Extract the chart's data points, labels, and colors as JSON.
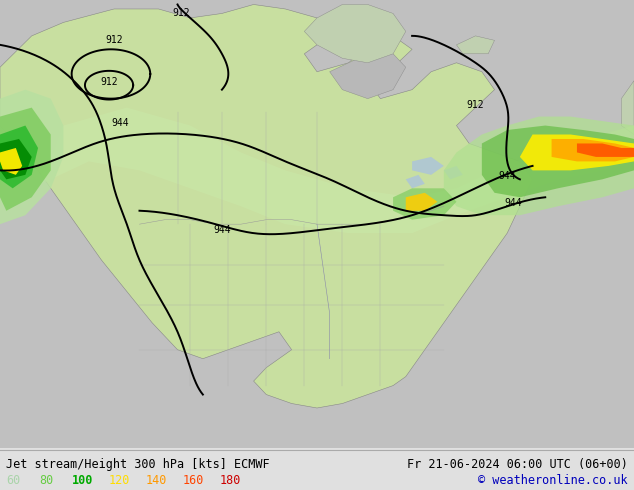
{
  "title_left": "Jet stream/Height 300 hPa [kts] ECMWF",
  "title_right": "Fr 21-06-2024 06:00 UTC (06+00)",
  "copyright": "© weatheronline.co.uk",
  "legend_values": [
    "60",
    "80",
    "100",
    "120",
    "140",
    "160",
    "180"
  ],
  "legend_colors": [
    "#aad4aa",
    "#66cc44",
    "#00aa00",
    "#ffdd00",
    "#ff9900",
    "#ff4400",
    "#cc0000"
  ],
  "legend_bold": [
    false,
    false,
    true,
    false,
    false,
    false,
    false
  ],
  "title_color": "black",
  "copyright_color": "#0000bb",
  "title_fontsize": 8.5,
  "legend_fontsize": 8.5,
  "bottom_bar_color": "#f2f2f2",
  "bottom_bar_height": 0.085,
  "fig_bg": "#e0e0e0",
  "map_ocean": "#c8c8c8",
  "map_land_base": "#d4e8b8",
  "map_land_medium": "#b8d89a",
  "map_land_dark": "#a0c880",
  "jet_light_green": "#c0e8a0",
  "jet_mid_green": "#80cc60",
  "jet_bright_green": "#30bb30",
  "jet_dark_green": "#008800",
  "jet_yellow": "#ffee00",
  "jet_orange": "#ffaa00",
  "jet_red_orange": "#ff5500",
  "jet_red": "#dd2200",
  "contour_color": "black",
  "contour_lw": 1.4,
  "label_fontsize": 7,
  "fig_width": 6.34,
  "fig_height": 4.9
}
